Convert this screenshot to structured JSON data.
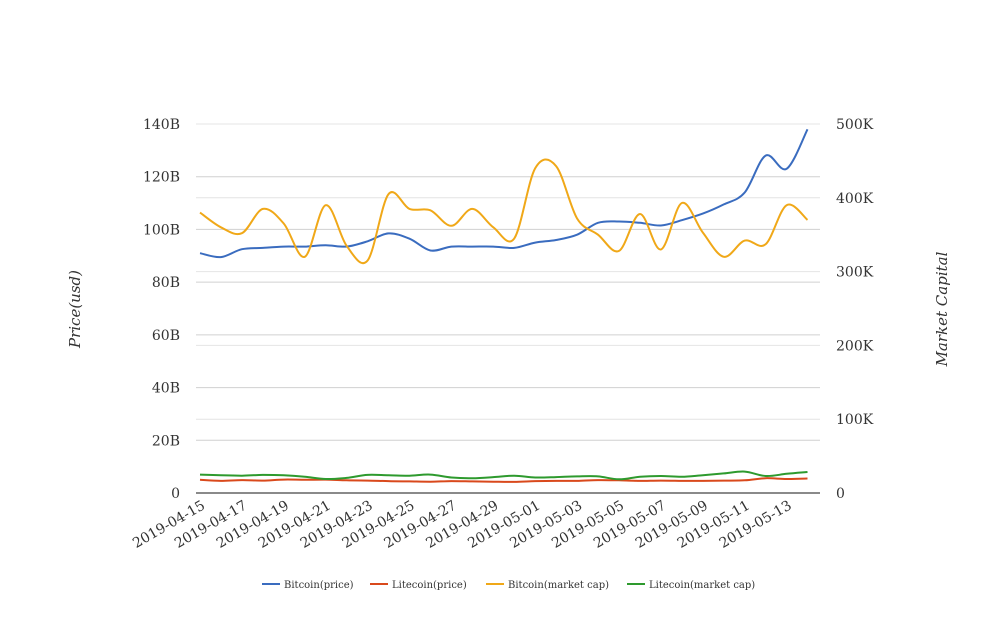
{
  "chart_data": {
    "type": "line",
    "title": "",
    "y_left_label": "Price(usd)",
    "y_right_label": "Market Capital",
    "y_left_ticks": [
      "0",
      "20B",
      "40B",
      "60B",
      "80B",
      "100B",
      "120B",
      "140B"
    ],
    "y_right_ticks": [
      "0",
      "100K",
      "200K",
      "300K",
      "400K",
      "500K"
    ],
    "ylim_left": [
      0,
      140
    ],
    "ylim_right": [
      0,
      500
    ],
    "x_tick_labels": [
      "2019-04-15",
      "2019-04-17",
      "2019-04-19",
      "2019-04-21",
      "2019-04-23",
      "2019-04-25",
      "2019-04-27",
      "2019-04-29",
      "2019-05-01",
      "2019-05-03",
      "2019-05-05",
      "2019-05-07",
      "2019-05-09",
      "2019-05-11",
      "2019-05-13"
    ],
    "x": [
      "2019-04-15",
      "2019-04-16",
      "2019-04-17",
      "2019-04-18",
      "2019-04-19",
      "2019-04-20",
      "2019-04-21",
      "2019-04-22",
      "2019-04-23",
      "2019-04-24",
      "2019-04-25",
      "2019-04-26",
      "2019-04-27",
      "2019-04-28",
      "2019-04-29",
      "2019-04-30",
      "2019-05-01",
      "2019-05-02",
      "2019-05-03",
      "2019-05-04",
      "2019-05-05",
      "2019-05-06",
      "2019-05-07",
      "2019-05-08",
      "2019-05-09",
      "2019-05-10",
      "2019-05-11",
      "2019-05-12",
      "2019-05-13",
      "2019-05-14"
    ],
    "grid": true,
    "legend_position": "bottom",
    "series": [
      {
        "name": "Bitcoin(price)",
        "axis": "left",
        "color": "#3a6cbf",
        "values": [
          91,
          89.5,
          92.5,
          93,
          93.5,
          93.5,
          94,
          93.5,
          95.5,
          98.5,
          96.5,
          92,
          93.5,
          93.5,
          93.5,
          93,
          95,
          96,
          98,
          102.5,
          103,
          102.5,
          101.5,
          103.5,
          106,
          109.5,
          114,
          128,
          123,
          138
        ]
      },
      {
        "name": "Litecoin(price)",
        "axis": "left",
        "color": "#d9491c",
        "values": [
          5,
          4.6,
          4.9,
          4.7,
          5.1,
          5,
          5.1,
          4.8,
          4.7,
          4.5,
          4.4,
          4.3,
          4.5,
          4.4,
          4.3,
          4.2,
          4.5,
          4.6,
          4.6,
          4.9,
          4.8,
          4.6,
          4.7,
          4.6,
          4.6,
          4.7,
          4.8,
          5.6,
          5.3,
          5.5
        ]
      },
      {
        "name": "Bitcoin(market cap)",
        "axis": "right",
        "color": "#f0a818",
        "values": [
          380,
          360,
          352,
          385,
          365,
          320,
          390,
          335,
          315,
          405,
          385,
          383,
          362,
          385,
          360,
          345,
          440,
          443,
          372,
          350,
          328,
          378,
          330,
          393,
          353,
          320,
          342,
          337,
          390,
          370
        ]
      },
      {
        "name": "Litecoin(market cap)",
        "axis": "right",
        "color": "#2e9a2e",
        "values": [
          25,
          24,
          23.5,
          24.5,
          24,
          22,
          19,
          20.5,
          24.5,
          24,
          23.5,
          25,
          21,
          20,
          21.5,
          23.5,
          21,
          21.5,
          22.5,
          22.5,
          18.5,
          22,
          23,
          22,
          24,
          26.5,
          29,
          23,
          26,
          28.5
        ]
      }
    ]
  }
}
